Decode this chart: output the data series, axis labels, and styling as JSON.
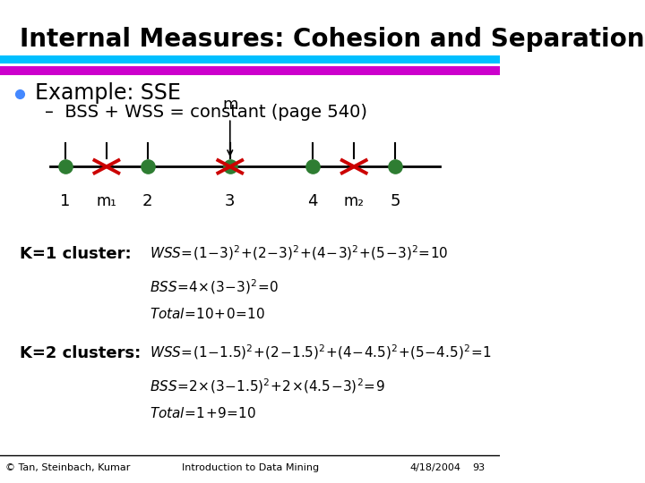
{
  "title": "Internal Measures: Cohesion and Separation",
  "title_color": "#000000",
  "title_fontsize": 20,
  "stripe1_color": "#00BFFF",
  "stripe2_color": "#CC00CC",
  "bullet_color": "#4488FF",
  "bullet_text": "Example: SSE",
  "bullet_fontsize": 17,
  "sub_bullet_text": "BSS + WSS = constant (page 540)",
  "sub_bullet_fontsize": 14,
  "dot_color": "#2E7D32",
  "cross_color": "#CC0000",
  "dot_labels": [
    "1",
    "2",
    "3",
    "4",
    "5"
  ],
  "m_label": "m",
  "k1_label": "K=1 cluster:",
  "k2_label": "K=2 clusters:",
  "footer_left": "© Tan, Steinbach, Kumar",
  "footer_center": "Introduction to Data Mining",
  "footer_right": "4/18/2004",
  "footer_page": "93",
  "bg_color": "#FFFFFF"
}
